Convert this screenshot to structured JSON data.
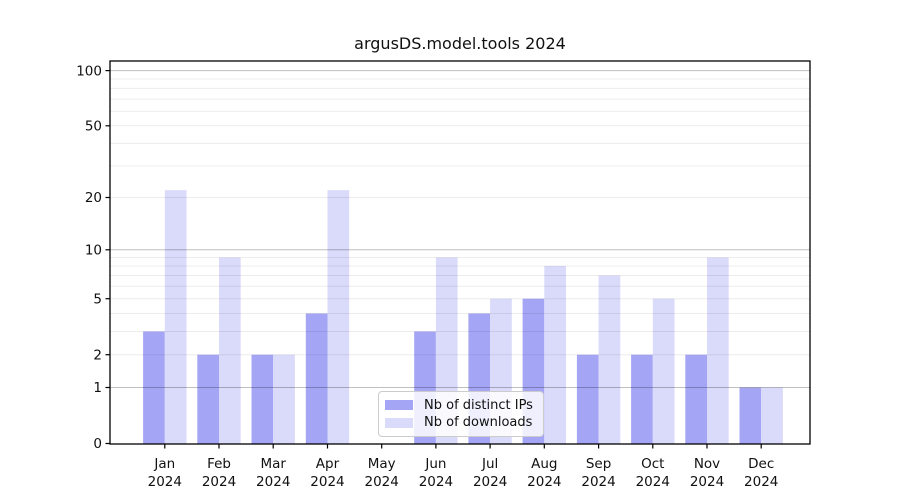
{
  "chart_data": {
    "type": "bar",
    "title": "argusDS.model.tools 2024",
    "categories": [
      "Jan",
      "Feb",
      "Mar",
      "Apr",
      "May",
      "Jun",
      "Jul",
      "Aug",
      "Sep",
      "Oct",
      "Nov",
      "Dec"
    ],
    "x_tick_second_line": "2024",
    "series": [
      {
        "name": "Nb of distinct IPs",
        "color": "#a5a5f5",
        "values": [
          3,
          2,
          2,
          4,
          0,
          3,
          4,
          5,
          2,
          2,
          2,
          1
        ]
      },
      {
        "name": "Nb of downloads",
        "color": "#dadafa",
        "values": [
          22,
          9,
          2,
          22,
          0,
          9,
          5,
          8,
          7,
          5,
          9,
          1
        ]
      }
    ],
    "yscale": "log1p",
    "ylim": [
      0,
      111
    ],
    "ytick_labels": [
      0,
      1,
      2,
      5,
      10,
      20,
      50,
      100
    ],
    "major_gridlines": [
      1,
      10,
      100
    ],
    "minor_gridlines": [
      2,
      3,
      4,
      5,
      6,
      7,
      8,
      9,
      20,
      30,
      40,
      50,
      60,
      70,
      80,
      90
    ],
    "grid": "both",
    "legend_position": "lower center"
  },
  "colors": {
    "bar_distinct_ips": "#a5a5f5",
    "bar_downloads": "#dadafa",
    "axis": "#000000",
    "major_grid": "rgba(0,0,0,0.25)",
    "minor_grid": "rgba(0,0,0,0.075)",
    "text": "#111111",
    "legend_border": "#cccccc",
    "background": "#ffffff"
  }
}
